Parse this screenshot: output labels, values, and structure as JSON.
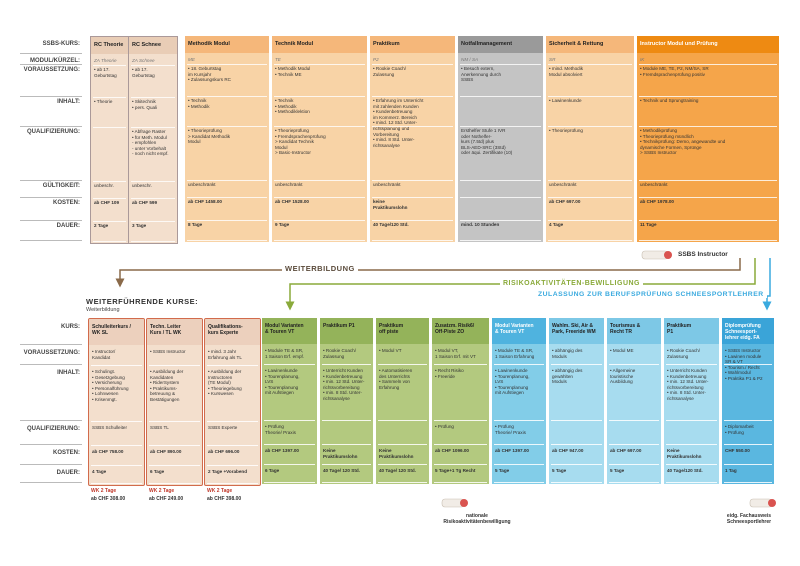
{
  "top": {
    "labels": [
      "SSBS-KURS:",
      "MODUL/KÜRZEL:",
      "VORAUSSETZUNG:",
      "INHALT:",
      "QUALIFIZIERUNG:",
      "GÜLTIGKEIT:",
      "KOSTEN:",
      "DAUER:"
    ],
    "columns": [
      {
        "title": "RC Theorie",
        "kuerzel": "ZA Theorie",
        "voraussetzung": "• ab 17.\nGeburtstag",
        "inhalt": "• Theorie",
        "qualifizierung": "",
        "gueltigkeit": "unbeschr.",
        "kosten": "ab CHF 109",
        "dauer": "2 Tage",
        "color": "#f3dfcd"
      },
      {
        "title": "RC Schnee",
        "kuerzel": "ZA Schnee",
        "voraussetzung": "• ab 17.\nGeburtstag",
        "inhalt": "• Skitechnik\n• pers. Quali",
        "qualifizierung": "• Abfrage Raster\n• für Meth. Modul\n  - empfohlen\n  - unter Vorbehalt\n  - noch nicht empf.",
        "gueltigkeit": "unbeschr.",
        "kosten": "ab CHF 599",
        "dauer": "3 Tage",
        "color": "#f3dfcd"
      },
      {
        "title": "Methodik Modul",
        "kuerzel": "ME",
        "voraussetzung": "• 18. Geburtstag\n  im Kursjahr\n• Zulassungskurs RC",
        "inhalt": "• Technik\n• Methodik",
        "qualifizierung": "• Theorieprüfung\n> Kandidat Methodik\n  Modul",
        "gueltigkeit": "unbeschränkt",
        "kosten": "ab CHF 1458.00",
        "dauer": "8 Tage",
        "color": "#f8d3a6"
      },
      {
        "title": "Technik Modul",
        "kuerzel": "TE",
        "voraussetzung": "• Methodik Modul\n• Technik ME",
        "inhalt": "• Technik\n• Methodik\n• Methodiklektion",
        "qualifizierung": "• Theorieprüfung\n• Fremdsprachenprüfung\n> Kandidat Technik\n  Modul\n> Basic-Instructor",
        "gueltigkeit": "unbeschränkt",
        "kosten": "ab CHF 1528.00",
        "dauer": "9 Tage",
        "color": "#f8d3a6"
      },
      {
        "title": "Praktikum",
        "kuerzel": "P2",
        "voraussetzung": "• Rookie Coach/\n  Zulassung",
        "inhalt": "• Erfahrung im Unterricht\n  mit zahlenden Kunden\n• Kundenbetreuung\n  im Kommerz. Bereich\n• mind. 12 Std. Unter-\n  richtsplanung und\n  Vorbereitung\n• mind. 8 Std. Unter-\n  richtsanalyse",
        "qualifizierung": "",
        "gueltigkeit": "unbeschränkt",
        "kosten": "keine\nPraktikumslohn",
        "dauer": "40 Tage/120 Std.",
        "color": "#f8d3a6"
      },
      {
        "title": "Notfallmanagement",
        "kuerzel": "NM / SA",
        "voraussetzung": "• Besuch extern,\n  Anerkennung durch\n  SSBS",
        "inhalt": "",
        "qualifizierung": "Ersthelfer Stufe 1 IVR\noder Nothelfer-\nkurs (7.5td) plus\nBLS-AED-SRC (3Std)\noder äqui. Zertifikate (10)",
        "gueltigkeit": "",
        "kosten": "",
        "dauer": "mind. 10 Stunden",
        "color": "#c4c4c4"
      },
      {
        "title": "Sicherheit & Rettung",
        "kuerzel": "SR",
        "voraussetzung": "• mind. Methodik\n  Modul absolviert",
        "inhalt": "• Lawinenkunde",
        "qualifizierung": "• Theorieprüfung",
        "gueltigkeit": "unbeschränkt",
        "kosten": "ab CHF 697.00",
        "dauer": "4 Tage",
        "color": "#f8d3a6"
      },
      {
        "title": "Instructor Modul und Prüfung",
        "kuerzel": "IK",
        "voraussetzung": "• Module ME, TE, P2, NM/SA, SR\n• Fremdsprachenprüfung positiv",
        "inhalt": "• Technik und Sprungtraining",
        "qualifizierung": "• Methodikprüfung\n• Theorieprüfung mündlich\n• Technikprüfung: Demo, angewandte und\n  dynamische Formen, Sprünge\n> SSBS Instructor",
        "gueltigkeit": "unbeschränkt",
        "kosten": "ab CHF 1978.00",
        "dauer": "11 Tage",
        "color": "#f5a54a"
      }
    ],
    "badge": "SSBS Instructor"
  },
  "flow": {
    "weiterbildung": "WEITERBILDUNG",
    "risiko": "RISIKOAKTIVITÄTEN-BEWILLIGUNG",
    "zulassung": "ZULASSUNG ZUR BERUFSPRÜFUNG SCHNEESPORTLEHRER"
  },
  "bottom": {
    "title": "WEITERFÜHRENDE KURSE:",
    "subtitle": "Weiterbildung",
    "labels": [
      "KURS:",
      "VORAUSSETZUNG:",
      "INHALT:",
      "QUALIFIZIERUNG:",
      "KOSTEN:",
      "DAUER:"
    ],
    "columns": [
      {
        "title": "Schulleiterkurs /\nWK SL",
        "voraussetzung": "• Instructor/\n  Kandidat",
        "inhalt": "• Schulingt.\n• Gesetzgebung\n• Versicherung\n• Personalführung\n• Lohnwesen\n• Krisenmgt.",
        "qualifizierung": "SSBS Schulleiter",
        "kosten": "ab CHF 758.00",
        "dauer": "4 Tage",
        "wk": "WK 2 Tage",
        "wkcost": "ab CHF 308.00",
        "color": "#f3dfcd"
      },
      {
        "title": "Techn. Leiter\nKurs / TL WK",
        "voraussetzung": "• SSBS Instructor",
        "inhalt": "• Ausbildung der\n  Kandidaten\n• RiderSystem\n• Praktikums-\n  betreuung &\n  Bestätigungen",
        "qualifizierung": "SSBS TL",
        "kosten": "ab CHF 890.00",
        "dauer": "6 Tage",
        "wk": "WK 2 Tage",
        "wkcost": "ab CHF 249.00",
        "color": "#f3dfcd"
      },
      {
        "title": "Qualifikations-\nkurs Experte",
        "voraussetzung": "• mind. 3 Jahr\n  Erfahrung als TL",
        "inhalt": "• Ausbildung der\n  Instructoren\n  (TE Modul)\n• Theoriegebung\n• Kurswesen",
        "qualifizierung": "SSBS Experte",
        "kosten": "ab CHF 696.00",
        "dauer": "2 Tage +Vorabend",
        "wk": "WK 2 Tage",
        "wkcost": "ab CHF 398.00",
        "color": "#f3dfcd"
      },
      {
        "title": "Modul Varianten\n& Touren VT",
        "voraussetzung": "• Module TE & SR,\n  1 Saison Erf. empf.",
        "inhalt": "• Lawinenkunde\n• Tourenplanung,\n  LVS\n• Tourenplanung\n  mit Aufstiegen",
        "qualifizierung": "• Prüfung\n  Theorie/ Praxis",
        "kosten": "ab CHF 1397.00",
        "dauer": "6 Tage",
        "color": "#b3c97f"
      },
      {
        "title": "Praktikum P1",
        "voraussetzung": "• Rookie Coach/\n  Zulassung",
        "inhalt": "• Unterricht Kunden\n• Kundenbetreuung\n• min. 12 Std. Unter-\n  richtsvorbereitung\n• min. 8 Std. Unter-\n  richtsanalyse",
        "qualifizierung": "",
        "kosten": "Keine\nPraktikumslohn",
        "dauer": "40 Tage/ 120 Std.",
        "color": "#b3c97f"
      },
      {
        "title": "Praktikum\noff piste",
        "voraussetzung": "• Modul VT",
        "inhalt": "• Automatisieren\n  des Unterrichts\n• Sammeln von\n  Erfahrung",
        "qualifizierung": "",
        "kosten": "Keine\nPraktikumslohn",
        "dauer": "40 Tage/ 120 Std.",
        "color": "#b3c97f"
      },
      {
        "title": "Zusatzm. Risik6/\nOff-Piste ZO",
        "voraussetzung": "• Modul VT,\n  1 Saison Erf. mit VT",
        "inhalt": "• Recht Risiko\n• Freeride",
        "qualifizierung": "• Prüfung",
        "kosten": "ab CHF 1096.00",
        "dauer": "5 Tage+1 Tg Recht",
        "color": "#b3c97f"
      },
      {
        "title": "Modul Varianten\n& Touren VT",
        "voraussetzung": "• Module TE & SR,\n  1 Saison Erfahrung",
        "inhalt": "• Lawinenkunde\n• Tourenplanung,\n  LVS\n• Tourenplanung\n  mit Aufstiegen",
        "qualifizierung": "• Prüfung\n  Theorie/ Praxis",
        "kosten": "ab CHF 1397.00",
        "dauer": "5 Tage",
        "color": "#82cde8"
      },
      {
        "title": "Wahlm. Ski, Air &\nPark, Freeride WM",
        "voraussetzung": "• abhängig des\n  Moduls",
        "inhalt": "• abhängig des\n  gewählten\n  Moduls",
        "qualifizierung": "",
        "kosten": "ab CHF 947.00",
        "dauer": "5 Tage",
        "color": "#a7dcef"
      },
      {
        "title": "Tourismus &\nRecht TR",
        "voraussetzung": "• Modul ME",
        "inhalt": "• Allgemeine\n  touristische\n  Ausbildung",
        "qualifizierung": "",
        "kosten": "ab CHF 697.00",
        "dauer": "5 Tage",
        "color": "#a7dcef"
      },
      {
        "title": "Praktikum\nP1",
        "voraussetzung": "• Rookie Coach/\n  Zulassung",
        "inhalt": "• Unterricht Kunden\n• Kundenbetreuung\n• min. 12 Std. Unter-\n  richtsvorbereitung\n• min. 8 Std. Unter-\n  richtsanalyse",
        "qualifizierung": "",
        "kosten": "Keine\nPraktikumslohn",
        "dauer": "40 Tage/120 Std.",
        "color": "#a7dcef"
      },
      {
        "title": "Diplomprüfung\nSchneesport-\nlehrer eidg. FA",
        "voraussetzung": "• SSBS Instructor\n• Lawinen module\n  SR & VT\n• Tourism./ Recht\n• Wahlmodul\n• Praktika P1 & P2",
        "inhalt": "",
        "qualifizierung": "• Diplomarbeit\n• Prüfung",
        "kosten": "CHF 550.00",
        "dauer": "1 Tag",
        "color": "#5ab7e0"
      }
    ],
    "note1": "nationale\nRisikoaktivitätenbewilligung",
    "note2": "eidg. Fachausweis\nSchneesportlehrer"
  }
}
